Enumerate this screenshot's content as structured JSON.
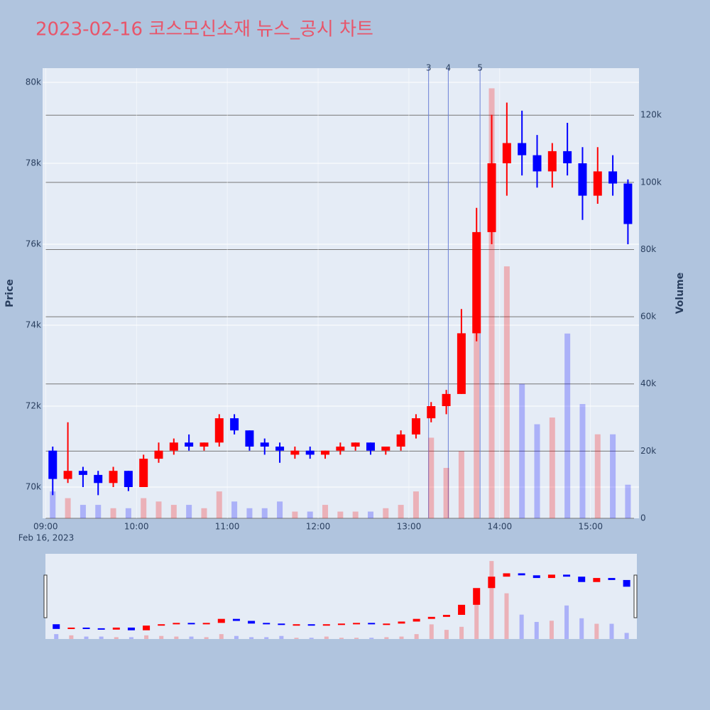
{
  "chart_data": {
    "type": "candlestick",
    "title": "2023-02-16 코스모신소재 뉴스_공시 차트",
    "y_label": "Price",
    "y2_label": "Volume",
    "x_date": "Feb 16, 2023",
    "up_color": "#ff0000",
    "down_color": "#0000ff",
    "x": [
      "09:00",
      "09:10",
      "09:20",
      "09:30",
      "09:40",
      "09:50",
      "10:00",
      "10:10",
      "10:20",
      "10:30",
      "10:40",
      "10:50",
      "11:00",
      "11:10",
      "11:20",
      "11:30",
      "11:40",
      "11:50",
      "12:00",
      "12:10",
      "12:20",
      "12:30",
      "12:40",
      "12:50",
      "13:00",
      "13:10",
      "13:20",
      "13:30",
      "13:40",
      "13:50",
      "14:00",
      "14:10",
      "14:20",
      "14:30",
      "14:40",
      "14:50",
      "15:00",
      "15:10",
      "15:20"
    ],
    "open": [
      70900,
      70200,
      70400,
      70300,
      70100,
      70400,
      70000,
      70700,
      70900,
      71100,
      71000,
      71100,
      71700,
      71400,
      71100,
      71000,
      70800,
      70900,
      70800,
      70900,
      71000,
      71100,
      70900,
      71000,
      71300,
      71700,
      72000,
      72300,
      73800,
      76300,
      78000,
      78500,
      78200,
      77800,
      78300,
      78000,
      77200,
      77800,
      77500
    ],
    "high": [
      71000,
      71600,
      70500,
      70400,
      70500,
      70400,
      70800,
      71100,
      71200,
      71300,
      71100,
      71800,
      71800,
      71400,
      71200,
      71100,
      71000,
      71000,
      70900,
      71100,
      71100,
      71100,
      71000,
      71400,
      71800,
      72100,
      72400,
      74400,
      76900,
      79200,
      79500,
      79300,
      78700,
      78500,
      79000,
      78400,
      78400,
      78200,
      77600
    ],
    "low": [
      69800,
      70100,
      70000,
      69800,
      70000,
      69900,
      70000,
      70600,
      70800,
      70900,
      70900,
      71000,
      71300,
      70900,
      70800,
      70600,
      70700,
      70700,
      70700,
      70800,
      70900,
      70800,
      70800,
      70900,
      71200,
      71600,
      71800,
      72300,
      73600,
      76000,
      77200,
      77700,
      77400,
      77400,
      77700,
      76600,
      77000,
      77200,
      76000
    ],
    "close": [
      70200,
      70400,
      70300,
      70100,
      70400,
      70000,
      70700,
      70900,
      71100,
      71000,
      71100,
      71700,
      71400,
      71000,
      71000,
      70900,
      70900,
      70800,
      70900,
      71000,
      71100,
      70900,
      71000,
      71300,
      71700,
      72000,
      72300,
      73800,
      76300,
      78000,
      78500,
      78200,
      77800,
      78300,
      78000,
      77200,
      77800,
      77500,
      76500
    ],
    "volume": [
      8000,
      6000,
      4000,
      4000,
      3000,
      3000,
      6000,
      5000,
      4000,
      4000,
      3000,
      8000,
      5000,
      3000,
      3000,
      5000,
      2000,
      2000,
      4000,
      2000,
      2000,
      2000,
      3000,
      4000,
      8000,
      24000,
      15000,
      20000,
      75000,
      128000,
      75000,
      40000,
      28000,
      30000,
      55000,
      34000,
      25000,
      25000,
      10000
    ],
    "xlim": [
      "08:58",
      "15:32"
    ],
    "xticks": [
      "09:00",
      "10:00",
      "11:00",
      "12:00",
      "13:00",
      "14:00",
      "15:00"
    ],
    "ylim": [
      69228,
      80351
    ],
    "yticks": [
      {
        "value": 70000,
        "label": "70k"
      },
      {
        "value": 72000,
        "label": "72k"
      },
      {
        "value": 74000,
        "label": "74k"
      },
      {
        "value": 76000,
        "label": "76k"
      },
      {
        "value": 78000,
        "label": "78k"
      },
      {
        "value": 80000,
        "label": "80k"
      }
    ],
    "y2lim": [
      0,
      134000
    ],
    "y2ticks": [
      0,
      {
        "value": 20000,
        "label": "20k"
      },
      {
        "value": 40000,
        "label": "40k"
      },
      {
        "value": 60000,
        "label": "60k"
      },
      {
        "value": 80000,
        "label": "80k"
      },
      {
        "value": 100000,
        "label": "100k"
      },
      {
        "value": 120000,
        "label": "120k"
      }
    ],
    "annotations": [
      {
        "x": "13:13",
        "text": "3"
      },
      {
        "x": "13:26",
        "text": "4"
      },
      {
        "x": "13:47",
        "text": "5"
      }
    ]
  }
}
